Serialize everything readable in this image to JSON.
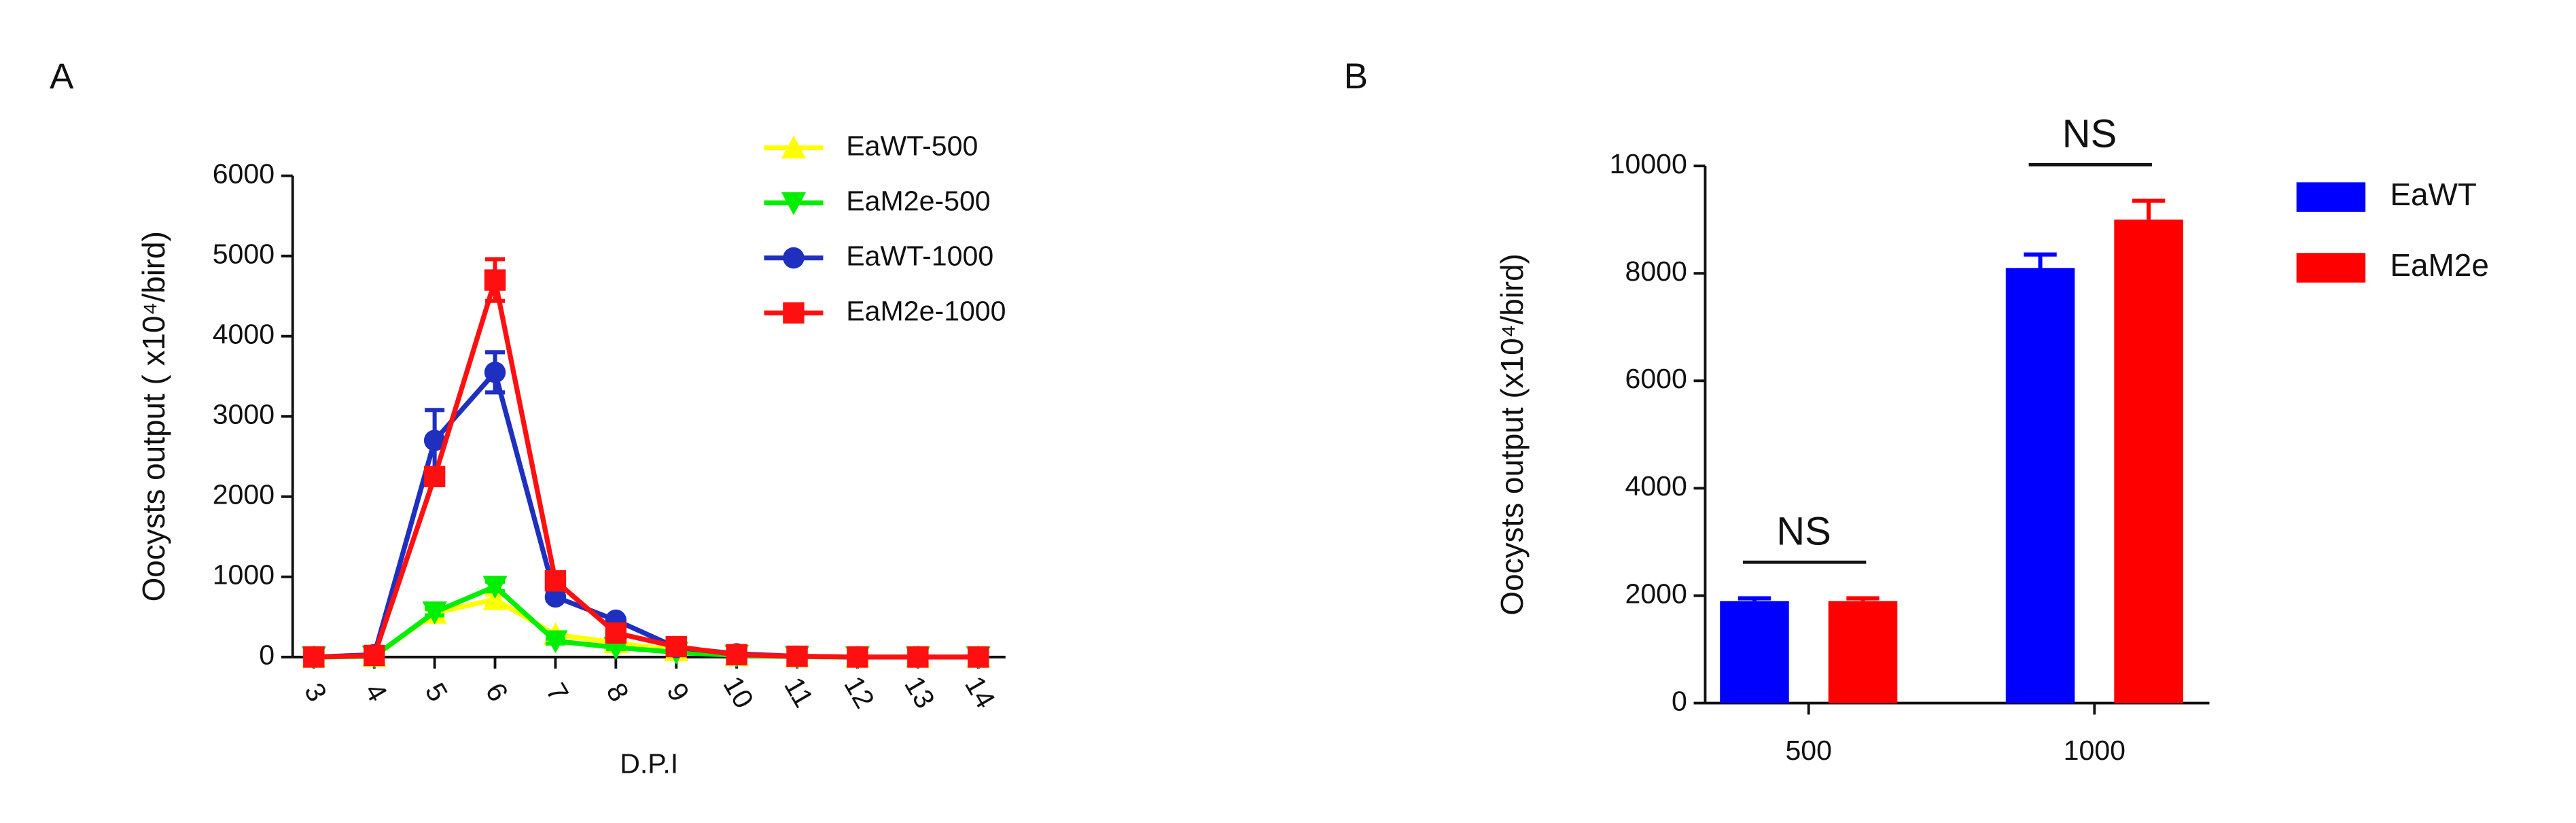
{
  "chart_data": [
    {
      "type": "line",
      "panel": "A",
      "xlabel": "D.P.I",
      "ylabel": "Oocysts output ( x10⁴/bird)",
      "x": [
        3,
        4,
        5,
        6,
        7,
        8,
        9,
        10,
        11,
        12,
        13,
        14
      ],
      "xlim": [
        2.65,
        14.45
      ],
      "xticks": [
        3,
        4,
        5,
        6,
        7,
        8,
        9,
        10,
        11,
        12,
        13,
        14
      ],
      "ylim": [
        0,
        6000
      ],
      "yticks": [
        0,
        1000,
        2000,
        3000,
        4000,
        5000,
        6000
      ],
      "series": [
        {
          "name": "EaWT-500",
          "color": "#ffff00",
          "marker": "triangle-up",
          "values": [
            0,
            10,
            550,
            720,
            280,
            180,
            80,
            20,
            5,
            0,
            0,
            0
          ],
          "errors": [
            0,
            0,
            40,
            60,
            30,
            20,
            10,
            0,
            0,
            0,
            0,
            0
          ]
        },
        {
          "name": "EaM2e-500",
          "color": "#00ee00",
          "marker": "triangle-down",
          "values": [
            0,
            10,
            560,
            880,
            200,
            120,
            60,
            20,
            5,
            0,
            0,
            0
          ],
          "errors": [
            0,
            0,
            40,
            60,
            30,
            20,
            10,
            0,
            0,
            0,
            0,
            0
          ]
        },
        {
          "name": "EaWT-1000",
          "color": "#1f2fc0",
          "marker": "circle",
          "values": [
            0,
            30,
            2700,
            3550,
            750,
            460,
            120,
            40,
            10,
            0,
            0,
            0
          ],
          "errors": [
            0,
            0,
            380,
            250,
            40,
            30,
            10,
            0,
            0,
            0,
            0,
            0
          ]
        },
        {
          "name": "EaM2e-1000",
          "color": "#ff1010",
          "marker": "square",
          "values": [
            0,
            20,
            2250,
            4700,
            950,
            300,
            130,
            30,
            10,
            0,
            0,
            0
          ],
          "errors": [
            0,
            0,
            100,
            260,
            80,
            30,
            10,
            0,
            0,
            0,
            0,
            0
          ]
        }
      ]
    },
    {
      "type": "bar",
      "panel": "B",
      "ylabel": "Oocysts output (x10⁴/bird)",
      "categories": [
        "500",
        "1000"
      ],
      "ylim": [
        0,
        10000
      ],
      "yticks": [
        0,
        2000,
        4000,
        6000,
        8000,
        10000
      ],
      "annotations": [
        "NS",
        "NS"
      ],
      "series": [
        {
          "name": "EaWT",
          "color": "#0000ff",
          "values": [
            1900,
            8100
          ],
          "errors": [
            50,
            250
          ]
        },
        {
          "name": "EaM2e",
          "color": "#ff0000",
          "values": [
            1900,
            9000
          ],
          "errors": [
            50,
            350
          ]
        }
      ]
    }
  ]
}
